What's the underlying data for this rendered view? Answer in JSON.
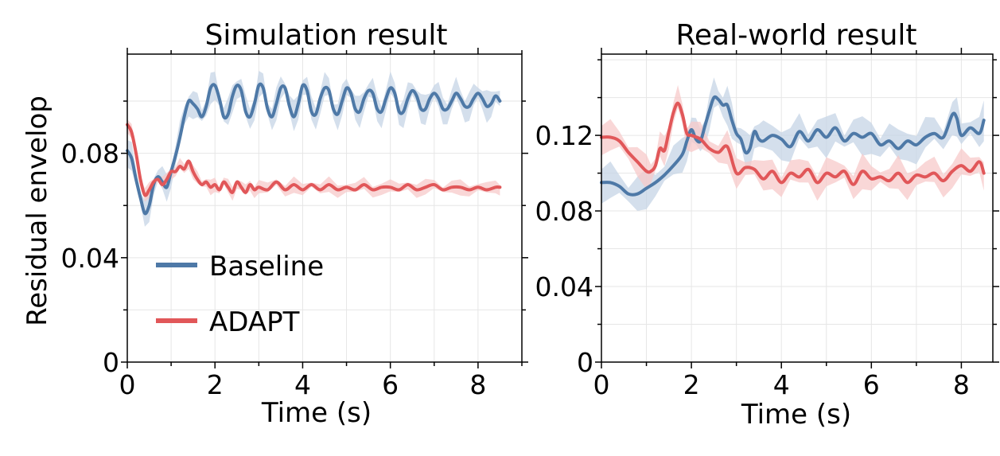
{
  "colors": {
    "baseline": "#4e79a7",
    "adapt": "#e15759",
    "baseline_band": "#c6d4e5",
    "adapt_band": "#f7caca"
  },
  "legend": {
    "items": [
      {
        "label": "Baseline",
        "color": "#4e79a7"
      },
      {
        "label": "ADAPT",
        "color": "#e15759"
      }
    ],
    "placement": "lower-left of left panel"
  },
  "chart_data": [
    {
      "type": "line",
      "title": "Simulation result",
      "xlabel": "Time (s)",
      "ylabel": "Residual envelop",
      "xlim": [
        0,
        9
      ],
      "ylim": [
        0,
        0.118
      ],
      "xticks": [
        "0",
        "2",
        "4",
        "6",
        "8"
      ],
      "xtick_values": [
        0,
        2,
        4,
        6,
        8
      ],
      "yticks": [
        "0",
        "0.04",
        "0.08"
      ],
      "ytick_values": [
        0,
        0.04,
        0.08
      ],
      "grid": true,
      "series": [
        {
          "name": "Baseline",
          "color": "#4e79a7",
          "x": [
            0.0,
            0.1,
            0.2,
            0.3,
            0.4,
            0.5,
            0.6,
            0.7,
            0.8,
            0.9,
            1.0,
            1.1,
            1.2,
            1.3,
            1.4,
            1.5,
            1.6,
            1.7,
            1.8,
            1.9,
            2.0,
            2.1,
            2.2,
            2.3,
            2.4,
            2.5,
            2.6,
            2.7,
            2.8,
            2.9,
            3.0,
            3.1,
            3.2,
            3.3,
            3.4,
            3.5,
            3.6,
            3.7,
            3.8,
            3.9,
            4.0,
            4.1,
            4.2,
            4.3,
            4.4,
            4.5,
            4.6,
            4.7,
            4.8,
            4.9,
            5.0,
            5.1,
            5.2,
            5.3,
            5.4,
            5.5,
            5.6,
            5.7,
            5.8,
            5.9,
            6.0,
            6.1,
            6.2,
            6.3,
            6.4,
            6.5,
            6.6,
            6.7,
            6.8,
            6.9,
            7.0,
            7.1,
            7.2,
            7.3,
            7.4,
            7.5,
            7.6,
            7.7,
            7.8,
            7.9,
            8.0,
            8.1,
            8.2,
            8.3,
            8.4,
            8.5
          ],
          "y": [
            0.081,
            0.078,
            0.07,
            0.063,
            0.057,
            0.06,
            0.068,
            0.071,
            0.069,
            0.067,
            0.073,
            0.079,
            0.086,
            0.094,
            0.1,
            0.099,
            0.097,
            0.094,
            0.098,
            0.105,
            0.106,
            0.101,
            0.094,
            0.095,
            0.102,
            0.106,
            0.104,
            0.096,
            0.094,
            0.099,
            0.106,
            0.105,
            0.097,
            0.094,
            0.099,
            0.105,
            0.105,
            0.098,
            0.094,
            0.099,
            0.106,
            0.104,
            0.096,
            0.095,
            0.101,
            0.105,
            0.104,
            0.097,
            0.095,
            0.1,
            0.105,
            0.103,
            0.097,
            0.096,
            0.101,
            0.104,
            0.103,
            0.097,
            0.096,
            0.101,
            0.105,
            0.103,
            0.096,
            0.096,
            0.101,
            0.104,
            0.102,
            0.097,
            0.097,
            0.101,
            0.103,
            0.101,
            0.097,
            0.097,
            0.1,
            0.103,
            0.101,
            0.098,
            0.098,
            0.101,
            0.103,
            0.101,
            0.098,
            0.099,
            0.102,
            0.1
          ],
          "band": 0.004
        },
        {
          "name": "ADAPT",
          "color": "#e15759",
          "x": [
            0.0,
            0.1,
            0.2,
            0.3,
            0.4,
            0.5,
            0.6,
            0.7,
            0.8,
            0.9,
            1.0,
            1.1,
            1.2,
            1.3,
            1.4,
            1.5,
            1.6,
            1.7,
            1.8,
            1.9,
            2.0,
            2.1,
            2.2,
            2.3,
            2.4,
            2.5,
            2.6,
            2.7,
            2.8,
            2.9,
            3.0,
            3.2,
            3.4,
            3.6,
            3.8,
            4.0,
            4.2,
            4.4,
            4.6,
            4.8,
            5.0,
            5.2,
            5.4,
            5.6,
            5.8,
            6.0,
            6.2,
            6.4,
            6.6,
            6.8,
            7.0,
            7.2,
            7.4,
            7.6,
            7.8,
            8.0,
            8.2,
            8.4,
            8.5
          ],
          "y": [
            0.091,
            0.088,
            0.08,
            0.07,
            0.064,
            0.066,
            0.069,
            0.07,
            0.068,
            0.07,
            0.073,
            0.073,
            0.075,
            0.074,
            0.077,
            0.073,
            0.07,
            0.068,
            0.069,
            0.067,
            0.068,
            0.066,
            0.069,
            0.067,
            0.065,
            0.069,
            0.067,
            0.065,
            0.068,
            0.066,
            0.067,
            0.066,
            0.069,
            0.066,
            0.068,
            0.066,
            0.068,
            0.066,
            0.068,
            0.066,
            0.067,
            0.066,
            0.068,
            0.066,
            0.067,
            0.067,
            0.066,
            0.068,
            0.066,
            0.067,
            0.068,
            0.066,
            0.067,
            0.067,
            0.066,
            0.067,
            0.066,
            0.067,
            0.067
          ],
          "band": 0.002
        }
      ]
    },
    {
      "type": "line",
      "title": "Real-world result",
      "xlabel": "Time (s)",
      "ylabel": "",
      "xlim": [
        0,
        8.7
      ],
      "ylim": [
        0,
        0.163
      ],
      "xticks": [
        "0",
        "2",
        "4",
        "6",
        "8"
      ],
      "xtick_values": [
        0,
        2,
        4,
        6,
        8
      ],
      "yticks": [
        "0",
        "0.04",
        "0.08",
        "0.12"
      ],
      "ytick_values": [
        0,
        0.04,
        0.08,
        0.12
      ],
      "grid": true,
      "series": [
        {
          "name": "Baseline",
          "color": "#4e79a7",
          "x": [
            0.0,
            0.2,
            0.4,
            0.6,
            0.8,
            1.0,
            1.2,
            1.4,
            1.6,
            1.8,
            1.9,
            2.0,
            2.1,
            2.2,
            2.3,
            2.4,
            2.5,
            2.6,
            2.7,
            2.8,
            2.9,
            3.0,
            3.1,
            3.2,
            3.3,
            3.4,
            3.5,
            3.6,
            3.8,
            4.0,
            4.2,
            4.4,
            4.6,
            4.8,
            5.0,
            5.2,
            5.4,
            5.6,
            5.8,
            6.0,
            6.2,
            6.4,
            6.6,
            6.8,
            7.0,
            7.2,
            7.4,
            7.6,
            7.8,
            7.9,
            8.0,
            8.2,
            8.4,
            8.5
          ],
          "y": [
            0.095,
            0.095,
            0.093,
            0.089,
            0.089,
            0.092,
            0.095,
            0.099,
            0.104,
            0.11,
            0.117,
            0.123,
            0.118,
            0.117,
            0.125,
            0.133,
            0.14,
            0.139,
            0.136,
            0.136,
            0.128,
            0.121,
            0.118,
            0.111,
            0.113,
            0.122,
            0.118,
            0.117,
            0.12,
            0.118,
            0.114,
            0.122,
            0.117,
            0.123,
            0.119,
            0.124,
            0.117,
            0.121,
            0.119,
            0.121,
            0.115,
            0.117,
            0.113,
            0.117,
            0.115,
            0.119,
            0.121,
            0.119,
            0.131,
            0.129,
            0.12,
            0.124,
            0.121,
            0.128
          ],
          "band": 0.007
        },
        {
          "name": "ADAPT",
          "color": "#e15759",
          "x": [
            0.0,
            0.2,
            0.4,
            0.6,
            0.8,
            1.0,
            1.1,
            1.2,
            1.3,
            1.4,
            1.5,
            1.6,
            1.7,
            1.8,
            1.9,
            2.0,
            2.2,
            2.4,
            2.6,
            2.8,
            3.0,
            3.2,
            3.4,
            3.6,
            3.8,
            4.0,
            4.2,
            4.4,
            4.6,
            4.8,
            5.0,
            5.2,
            5.4,
            5.6,
            5.8,
            6.0,
            6.2,
            6.4,
            6.6,
            6.8,
            7.0,
            7.2,
            7.4,
            7.6,
            7.8,
            8.0,
            8.2,
            8.4,
            8.5
          ],
          "y": [
            0.119,
            0.119,
            0.117,
            0.111,
            0.106,
            0.101,
            0.101,
            0.104,
            0.113,
            0.112,
            0.122,
            0.132,
            0.137,
            0.131,
            0.121,
            0.12,
            0.118,
            0.113,
            0.111,
            0.114,
            0.1,
            0.103,
            0.102,
            0.097,
            0.101,
            0.095,
            0.1,
            0.098,
            0.102,
            0.095,
            0.1,
            0.098,
            0.101,
            0.094,
            0.101,
            0.097,
            0.098,
            0.096,
            0.1,
            0.095,
            0.099,
            0.098,
            0.1,
            0.096,
            0.101,
            0.104,
            0.101,
            0.106,
            0.1
          ],
          "band": 0.006
        }
      ]
    }
  ]
}
